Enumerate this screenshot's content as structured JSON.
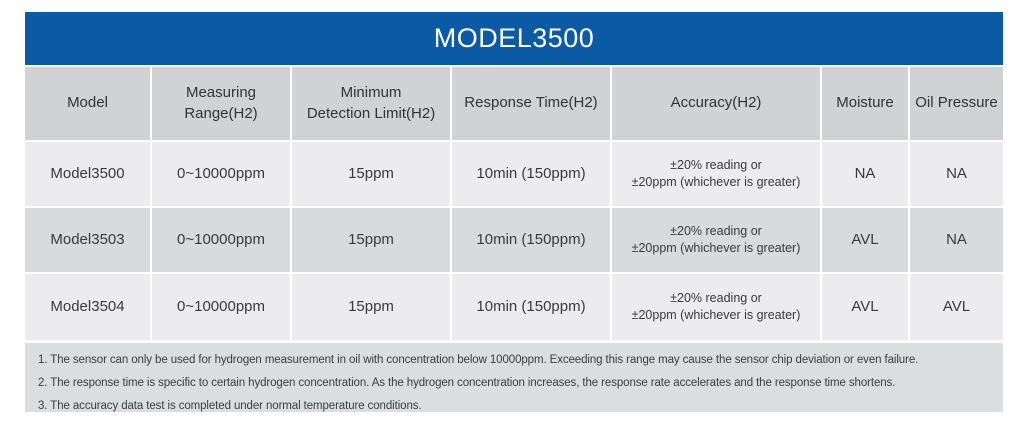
{
  "title": "MODEL3500",
  "colors": {
    "title_bar_blue": "#0b5aa6",
    "title_text": "#ffffff",
    "column_header_bg": "#d1d2d4",
    "row_light_bg": "#ececee",
    "row_dark_bg": "#d9dadc",
    "notes_bg": "#dcdddf",
    "cell_text": "#3a3a3c"
  },
  "table": {
    "columns": [
      {
        "label": "Model"
      },
      {
        "label": "Measuring\nRange(H2)"
      },
      {
        "label": "Minimum\nDetection Limit(H2)"
      },
      {
        "label": "Response Time(H2)"
      },
      {
        "label": "Accuracy(H2)"
      },
      {
        "label": "Moisture"
      },
      {
        "label": "Oil Pressure"
      }
    ],
    "rows": [
      {
        "cells": [
          "Model3500",
          "0~10000ppm",
          "15ppm",
          "10min (150ppm)",
          "±20% reading or\n±20ppm (whichever is greater)",
          "NA",
          "NA"
        ]
      },
      {
        "cells": [
          "Model3503",
          "0~10000ppm",
          "15ppm",
          "10min (150ppm)",
          "±20% reading or\n±20ppm (whichever is greater)",
          "AVL",
          "NA"
        ]
      },
      {
        "cells": [
          "Model3504",
          "0~10000ppm",
          "15ppm",
          "10min (150ppm)",
          "±20% reading or\n±20ppm (whichever is greater)",
          "AVL",
          "AVL"
        ]
      }
    ]
  },
  "notes": [
    "1. The sensor can only be used for hydrogen measurement in oil with concentration below 10000ppm. Exceeding this range may cause the sensor chip deviation or even failure.",
    "2. The response time is specific to certain hydrogen concentration. As the hydrogen concentration increases, the response rate accelerates and the response time shortens.",
    "3. The accuracy data test is completed under normal temperature conditions."
  ]
}
